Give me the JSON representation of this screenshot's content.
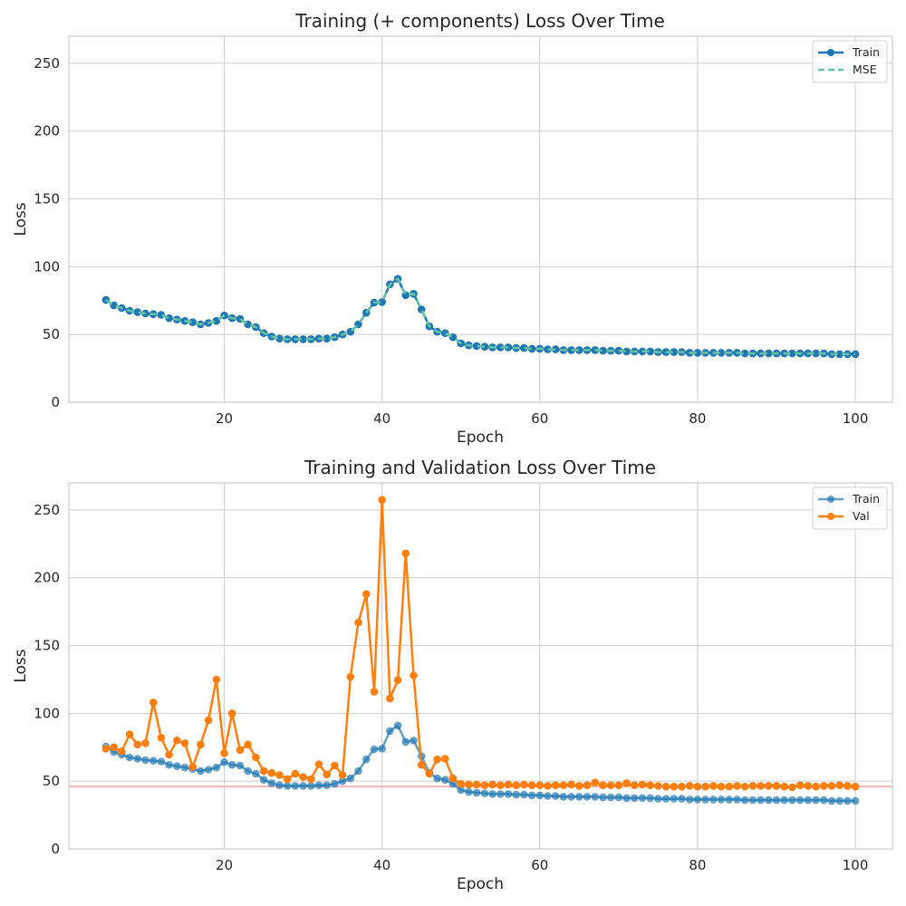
{
  "chart_data": [
    {
      "type": "line",
      "title": "Training (+ components) Loss Over Time",
      "xlabel": "Epoch",
      "ylabel": "Loss",
      "xlim": [
        0.3,
        104.7
      ],
      "ylim": [
        0,
        270
      ],
      "xticks": [
        20,
        40,
        60,
        80,
        100
      ],
      "yticks": [
        0,
        50,
        100,
        150,
        200,
        250
      ],
      "grid": true,
      "legend": "top-right",
      "x": [
        5,
        6,
        7,
        8,
        9,
        10,
        11,
        12,
        13,
        14,
        15,
        16,
        17,
        18,
        19,
        20,
        21,
        22,
        23,
        24,
        25,
        26,
        27,
        28,
        29,
        30,
        31,
        32,
        33,
        34,
        35,
        36,
        37,
        38,
        39,
        40,
        41,
        42,
        43,
        44,
        45,
        46,
        47,
        48,
        49,
        50,
        51,
        52,
        53,
        54,
        55,
        56,
        57,
        58,
        59,
        60,
        61,
        62,
        63,
        64,
        65,
        66,
        67,
        68,
        69,
        70,
        71,
        72,
        73,
        74,
        75,
        76,
        77,
        78,
        79,
        80,
        81,
        82,
        83,
        84,
        85,
        86,
        87,
        88,
        89,
        90,
        91,
        92,
        93,
        94,
        95,
        96,
        97,
        98,
        99,
        100
      ],
      "series": [
        {
          "name": "Train",
          "color": "#1f77b4",
          "style": "solid-markers",
          "values": [
            75.5,
            71.5,
            69.5,
            67.5,
            66.5,
            65.5,
            65,
            64.5,
            62,
            61,
            60,
            59,
            57.5,
            58.5,
            60,
            64,
            62,
            61.5,
            57.5,
            55.5,
            51,
            48.5,
            47,
            46.5,
            46.5,
            46.5,
            46.5,
            47,
            47,
            48,
            50,
            52,
            57.5,
            66,
            73.5,
            74,
            87,
            91,
            79,
            80,
            68.5,
            56,
            52,
            51,
            48,
            43.5,
            42,
            41.5,
            41,
            40.5,
            40.5,
            40.5,
            40,
            40,
            39.5,
            39.5,
            39,
            39,
            38.5,
            38.5,
            38.5,
            38.5,
            38.5,
            38,
            38,
            38,
            37.5,
            37.5,
            37.5,
            37.5,
            37,
            37,
            37,
            37,
            36.5,
            36.5,
            36.5,
            36.5,
            36.5,
            36.5,
            36.5,
            36,
            36,
            36,
            36,
            36,
            36,
            36,
            36,
            36,
            36,
            36,
            35.5,
            35.5,
            35.5,
            35.5
          ]
        },
        {
          "name": "MSE",
          "color": "#66c2a5",
          "style": "dashed",
          "values": [
            75.5,
            71.5,
            69.5,
            67.5,
            66.5,
            65.5,
            65,
            64.5,
            62,
            61,
            60,
            59,
            57.5,
            58.5,
            60,
            64,
            62,
            61.5,
            57.5,
            55.5,
            51,
            48.5,
            47,
            46.5,
            46.5,
            46.5,
            46.5,
            47,
            47,
            48,
            50,
            52,
            57.5,
            66,
            73.5,
            74,
            87,
            91,
            79,
            80,
            68.5,
            56,
            52,
            51,
            48,
            43.5,
            42,
            41.5,
            41,
            40.5,
            40.5,
            40.5,
            40,
            40,
            39.5,
            39.5,
            39,
            39,
            38.5,
            38.5,
            38.5,
            38.5,
            38.5,
            38,
            38,
            38,
            37.5,
            37.5,
            37.5,
            37.5,
            37,
            37,
            37,
            37,
            36.5,
            36.5,
            36.5,
            36.5,
            36.5,
            36.5,
            36.5,
            36,
            36,
            36,
            36,
            36,
            36,
            36,
            36,
            36,
            36,
            36,
            35.5,
            35.5,
            35.5,
            35.5
          ]
        }
      ]
    },
    {
      "type": "line",
      "title": "Training and Validation Loss Over Time",
      "xlabel": "Epoch",
      "ylabel": "Loss",
      "xlim": [
        0.3,
        104.7
      ],
      "ylim": [
        0,
        270
      ],
      "xticks": [
        20,
        40,
        60,
        80,
        100
      ],
      "yticks": [
        0,
        50,
        100,
        150,
        200,
        250
      ],
      "grid": true,
      "legend": "top-right",
      "hline": {
        "y": 46,
        "color": "#ffb3b3"
      },
      "x": [
        5,
        6,
        7,
        8,
        9,
        10,
        11,
        12,
        13,
        14,
        15,
        16,
        17,
        18,
        19,
        20,
        21,
        22,
        23,
        24,
        25,
        26,
        27,
        28,
        29,
        30,
        31,
        32,
        33,
        34,
        35,
        36,
        37,
        38,
        39,
        40,
        41,
        42,
        43,
        44,
        45,
        46,
        47,
        48,
        49,
        50,
        51,
        52,
        53,
        54,
        55,
        56,
        57,
        58,
        59,
        60,
        61,
        62,
        63,
        64,
        65,
        66,
        67,
        68,
        69,
        70,
        71,
        72,
        73,
        74,
        75,
        76,
        77,
        78,
        79,
        80,
        81,
        82,
        83,
        84,
        85,
        86,
        87,
        88,
        89,
        90,
        91,
        92,
        93,
        94,
        95,
        96,
        97,
        98,
        99,
        100
      ],
      "series": [
        {
          "name": "Train",
          "color": "#1f77b4",
          "style": "faded-markers",
          "values": [
            75.5,
            71.5,
            69.5,
            67.5,
            66.5,
            65.5,
            65,
            64.5,
            62,
            61,
            60,
            59,
            57.5,
            58.5,
            60,
            64,
            62,
            61.5,
            57.5,
            55.5,
            51,
            48.5,
            47,
            46.5,
            46.5,
            46.5,
            46.5,
            47,
            47,
            48,
            50,
            52,
            57.5,
            66,
            73.5,
            74,
            87,
            91,
            79,
            80,
            68.5,
            56,
            52,
            51,
            48,
            43.5,
            42,
            41.5,
            41,
            40.5,
            40.5,
            40.5,
            40,
            40,
            39.5,
            39.5,
            39,
            39,
            38.5,
            38.5,
            38.5,
            38.5,
            38.5,
            38,
            38,
            38,
            37.5,
            37.5,
            37.5,
            37.5,
            37,
            37,
            37,
            37,
            36.5,
            36.5,
            36.5,
            36.5,
            36.5,
            36.5,
            36.5,
            36,
            36,
            36,
            36,
            36,
            36,
            36,
            36,
            36,
            36,
            36,
            35.5,
            35.5,
            35.5,
            35.5
          ]
        },
        {
          "name": "Val",
          "color": "#ff7f0e",
          "style": "solid-markers",
          "values": [
            74,
            75,
            72,
            84.5,
            77,
            78,
            108,
            82,
            69.5,
            80,
            78,
            60.5,
            77,
            95,
            125,
            70.5,
            100,
            73,
            77,
            67.5,
            57.5,
            56,
            54.5,
            51.5,
            55.5,
            53,
            51.5,
            62.5,
            55,
            61.5,
            54.5,
            127,
            167,
            188,
            116,
            257.5,
            111,
            124.5,
            218,
            128,
            62,
            55.5,
            66,
            66.5,
            52,
            48,
            47.5,
            47.5,
            47,
            47.5,
            47,
            47.5,
            47,
            47.5,
            47,
            47,
            46.5,
            47,
            47,
            47.5,
            46.5,
            47,
            49,
            47,
            47,
            47,
            48.5,
            47,
            47.5,
            47,
            46.5,
            46,
            46,
            46,
            46.5,
            46,
            46,
            46.5,
            46,
            46,
            46.5,
            46,
            46.5,
            46.5,
            46.5,
            46.5,
            46,
            45.5,
            47,
            46.5,
            46,
            46.5,
            46.5,
            47,
            46.5,
            46
          ]
        }
      ]
    }
  ]
}
